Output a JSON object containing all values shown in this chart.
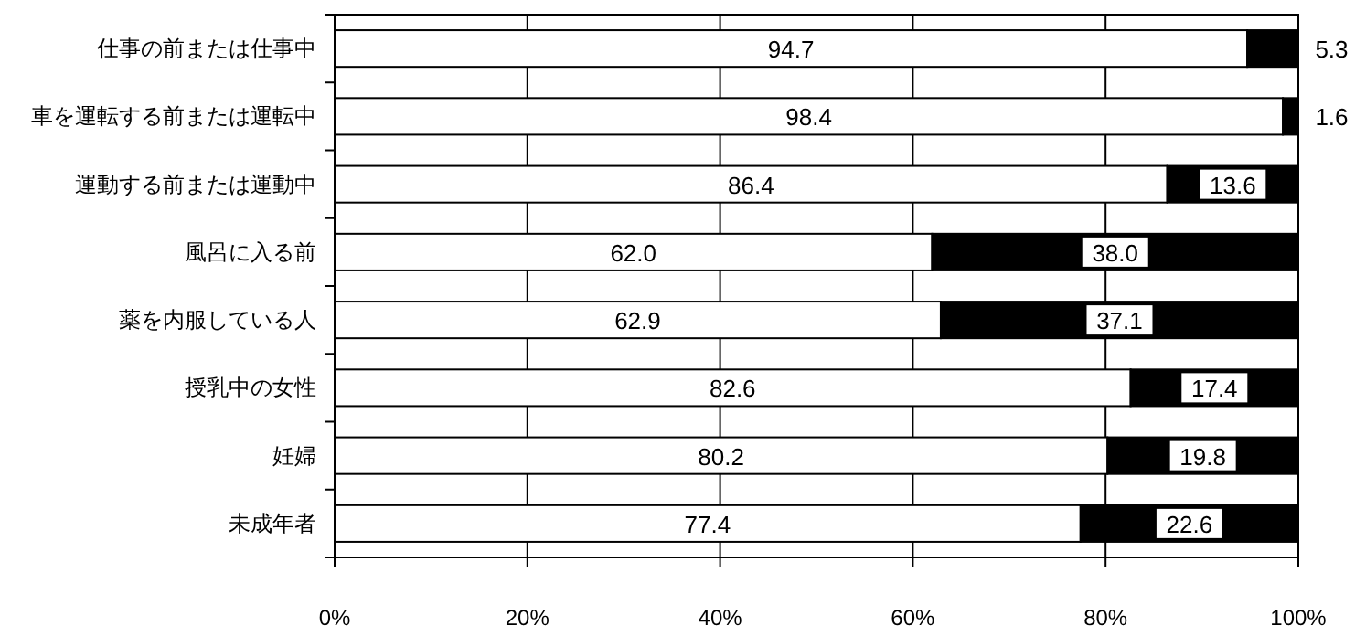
{
  "chart_data": {
    "type": "bar",
    "orientation": "horizontal",
    "stacked": true,
    "grid": "x",
    "categories": [
      "仕事の前または仕事中",
      "車を運転する前または運転中",
      "運動する前または運動中",
      "風呂に入る前",
      "薬を内服している人",
      "授乳中の女性",
      "妊婦",
      "未成年者"
    ],
    "series": [
      {
        "color": "#ffffff",
        "values": [
          94.7,
          98.4,
          86.4,
          62.0,
          62.9,
          82.6,
          80.2,
          77.4
        ],
        "value_labels": [
          "94.7",
          "98.4",
          "86.4",
          "62.0",
          "62.9",
          "82.6",
          "80.2",
          "77.4"
        ]
      },
      {
        "color": "#000000",
        "values": [
          5.3,
          1.6,
          13.6,
          38.0,
          37.1,
          17.4,
          19.8,
          22.6
        ],
        "value_labels": [
          "5.3",
          "1.6",
          "13.6",
          "38.0",
          "37.1",
          "17.4",
          "19.8",
          "22.6"
        ]
      }
    ],
    "xlim": [
      0,
      100
    ],
    "xticks": [
      {
        "value": 0,
        "label": "0%"
      },
      {
        "value": 20,
        "label": "20%"
      },
      {
        "value": 40,
        "label": "40%"
      },
      {
        "value": 60,
        "label": "60%"
      },
      {
        "value": 80,
        "label": "80%"
      },
      {
        "value": 100,
        "label": "100%"
      }
    ]
  }
}
